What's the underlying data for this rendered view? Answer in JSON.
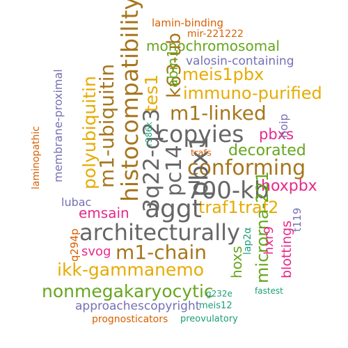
{
  "palette": {
    "orange": "#D95F02",
    "purple": "#7570B3",
    "magenta": "#E7298A",
    "green": "#66A61E",
    "gold": "#E6AB02",
    "brown": "#A6761D",
    "gray": "#666666",
    "teal": "#1B9E77"
  },
  "words": [
    {
      "text": "lamin-binding",
      "color": "orange"
    },
    {
      "text": "mir-221222",
      "color": "orange"
    },
    {
      "text": "monochromosomal",
      "color": "green"
    },
    {
      "text": "valosin-containing",
      "color": "purple"
    },
    {
      "text": "meis1pbx",
      "color": "gold"
    },
    {
      "text": "immuno-purified",
      "color": "gold"
    },
    {
      "text": "m1-linked",
      "color": "brown"
    },
    {
      "text": "copyies",
      "color": "gray"
    },
    {
      "text": "pbxs",
      "color": "magenta"
    },
    {
      "text": "conforming",
      "color": "brown"
    },
    {
      "text": "decorated",
      "color": "green"
    },
    {
      "text": "traf1traf2",
      "color": "gold"
    },
    {
      "text": "architecturally",
      "color": "gray"
    },
    {
      "text": "emsain",
      "color": "magenta"
    },
    {
      "text": "aggt",
      "color": "gray"
    },
    {
      "text": "700-kb",
      "color": "gray"
    },
    {
      "text": "hoxpbx",
      "color": "magenta"
    },
    {
      "text": "lubac",
      "color": "purple"
    },
    {
      "text": "m1-chain",
      "color": "brown"
    },
    {
      "text": "svog",
      "color": "magenta"
    },
    {
      "text": "ikk-gammanemo",
      "color": "gold"
    },
    {
      "text": "nonmegakaryocytic",
      "color": "green"
    },
    {
      "text": "approachescopyright",
      "color": "purple"
    },
    {
      "text": "prognosticators",
      "color": "orange"
    },
    {
      "text": "preovulatory",
      "color": "teal"
    },
    {
      "text": "meis12",
      "color": "teal"
    },
    {
      "text": "g232e",
      "color": "teal"
    },
    {
      "text": "fastest",
      "color": "teal"
    },
    {
      "text": "trafs",
      "color": "orange"
    },
    {
      "text": "histocompatibility",
      "color": "brown"
    },
    {
      "text": "m1-ubiquitin",
      "color": "brown"
    },
    {
      "text": "polyubiquitin",
      "color": "gold"
    },
    {
      "text": "membrane-proximal",
      "color": "purple"
    },
    {
      "text": "laminopathic",
      "color": "orange"
    },
    {
      "text": "3q22-q23",
      "color": "gray"
    },
    {
      "text": "pc14",
      "color": "gray"
    },
    {
      "text": "pbx1",
      "color": "gray"
    },
    {
      "text": "k63-ub",
      "color": "brown"
    },
    {
      "text": "tes1",
      "color": "gold"
    },
    {
      "text": "abin1",
      "color": "green"
    },
    {
      "text": "r386k",
      "color": "teal"
    },
    {
      "text": "hoip",
      "color": "purple"
    },
    {
      "text": "microrna-221",
      "color": "green"
    },
    {
      "text": "hoxs",
      "color": "green"
    },
    {
      "text": "lap2α",
      "color": "teal"
    },
    {
      "text": "hxr9",
      "color": "magenta"
    },
    {
      "text": "blottings",
      "color": "magenta"
    },
    {
      "text": "t119",
      "color": "purple"
    },
    {
      "text": "q294p",
      "color": "orange"
    }
  ]
}
